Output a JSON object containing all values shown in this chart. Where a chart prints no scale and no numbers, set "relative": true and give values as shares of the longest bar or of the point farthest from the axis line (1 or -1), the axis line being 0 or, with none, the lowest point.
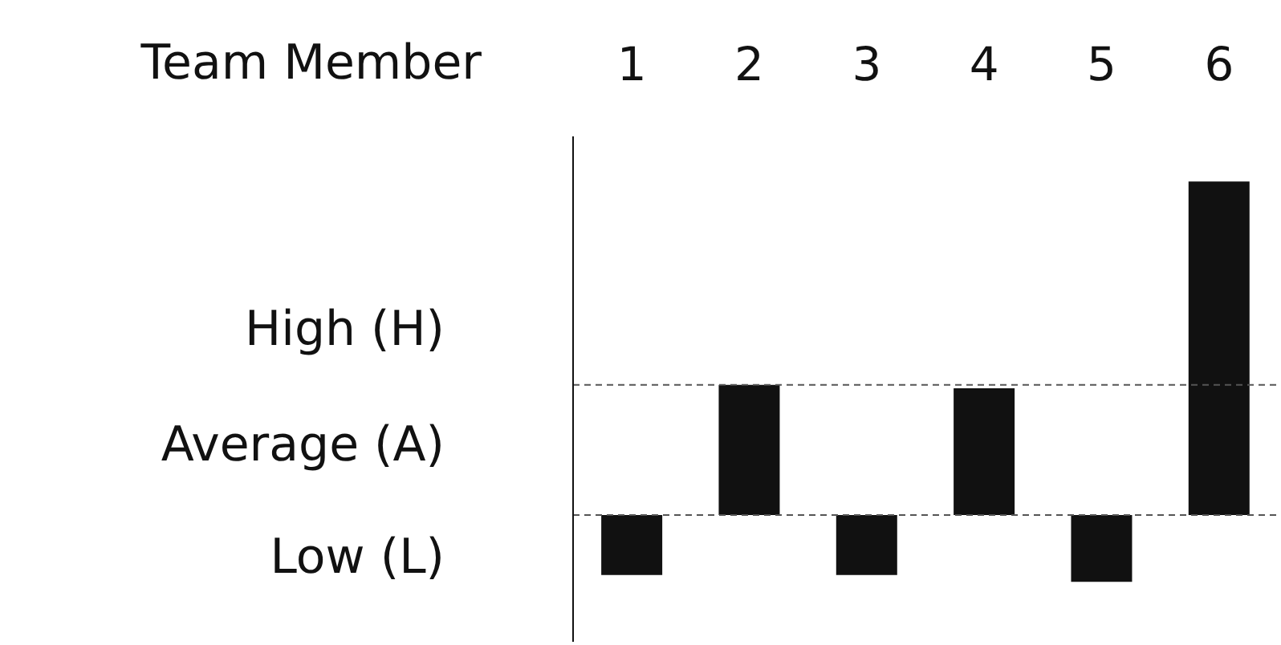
{
  "chart_data": {
    "type": "bar",
    "categories": [
      "1",
      "2",
      "3",
      "4",
      "5",
      "6"
    ],
    "values": [
      -0.18,
      0.39,
      -0.18,
      0.38,
      -0.2,
      1
    ],
    "color": "#111111",
    "relative": true,
    "ref_lines": [
      {
        "axis": "y",
        "value": 0.39,
        "line_style": "dashed",
        "color": "#555555"
      },
      {
        "axis": "y",
        "value": 0,
        "line_style": "dashed",
        "color": "#555555"
      }
    ],
    "annotations": [
      "Team Member",
      "High (H)",
      "Average (A)",
      "Low (L)"
    ],
    "grid": false,
    "legend": false
  }
}
